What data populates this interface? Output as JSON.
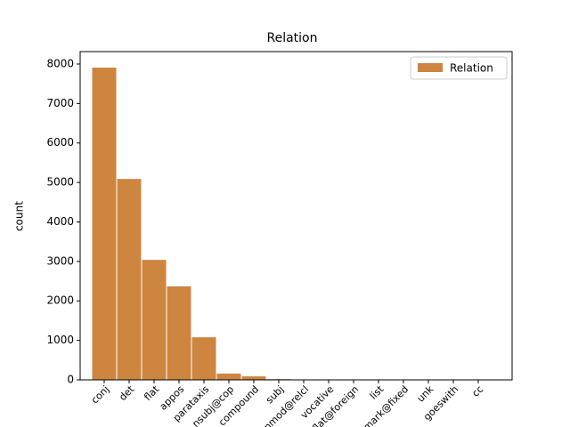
{
  "chart_data": {
    "type": "bar",
    "title": "Relation",
    "y_label": "count",
    "categories": [
      "conj",
      "det",
      "flat",
      "appos",
      "parataxis",
      "nsubj@cop",
      "compound",
      "subj",
      "nmod@relcl",
      "vocative",
      "flat@foreign",
      "list",
      "mark@fixed",
      "unk",
      "goeswith",
      "cc"
    ],
    "series": [
      {
        "name": "Relation",
        "color": "#cd853f",
        "values": [
          7920,
          5100,
          3050,
          2380,
          1090,
          170,
          100,
          30,
          5,
          3,
          2,
          1,
          1,
          1,
          1,
          1
        ]
      }
    ],
    "ylim": [
      0,
      8315
    ],
    "yticks": [
      0,
      1000,
      2000,
      3000,
      4000,
      5000,
      6000,
      7000,
      8000
    ],
    "grid": false,
    "legend": "upper right"
  }
}
